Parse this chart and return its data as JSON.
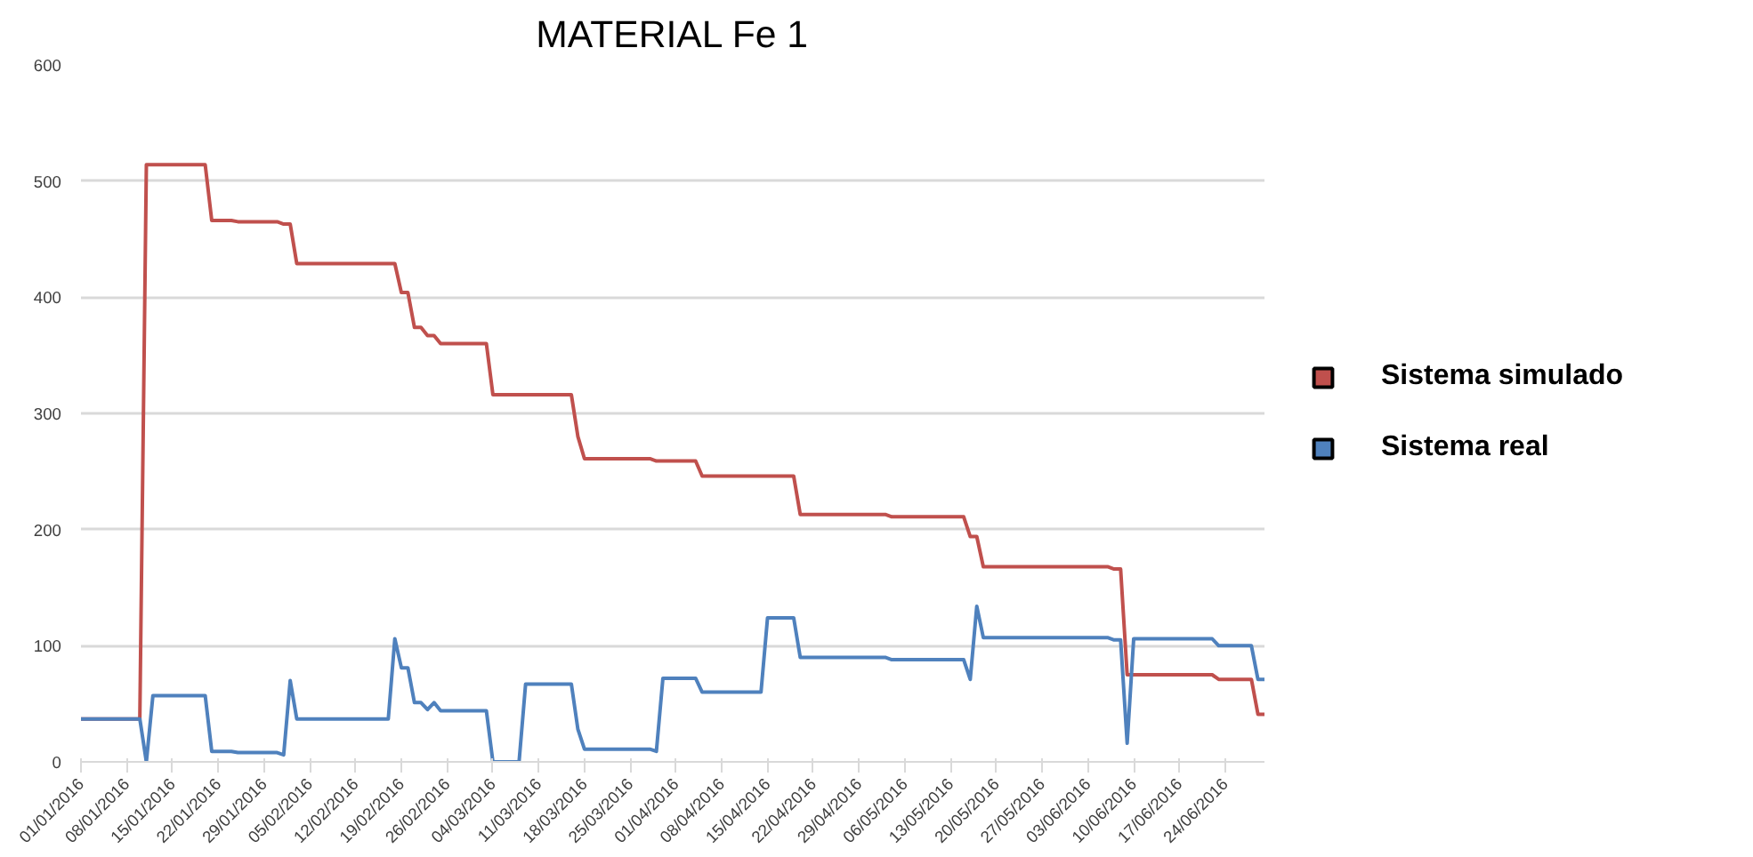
{
  "chart_data": {
    "type": "line",
    "title": "MATERIAL Fe 1",
    "xlim": [
      "2016-01-01",
      "2016-06-30"
    ],
    "xticks": [
      {
        "value": "2016-01-01",
        "label": "01/01/2016"
      },
      {
        "value": "2016-01-08",
        "label": "08/01/2016"
      },
      {
        "value": "2016-01-15",
        "label": "15/01/2016"
      },
      {
        "value": "2016-01-22",
        "label": "22/01/2016"
      },
      {
        "value": "2016-01-29",
        "label": "29/01/2016"
      },
      {
        "value": "2016-02-05",
        "label": "05/02/2016"
      },
      {
        "value": "2016-02-12",
        "label": "12/02/2016"
      },
      {
        "value": "2016-02-19",
        "label": "19/02/2016"
      },
      {
        "value": "2016-02-26",
        "label": "26/02/2016"
      },
      {
        "value": "2016-03-04",
        "label": "04/03/2016"
      },
      {
        "value": "2016-03-11",
        "label": "11/03/2016"
      },
      {
        "value": "2016-03-18",
        "label": "18/03/2016"
      },
      {
        "value": "2016-03-25",
        "label": "25/03/2016"
      },
      {
        "value": "2016-04-01",
        "label": "01/04/2016"
      },
      {
        "value": "2016-04-08",
        "label": "08/04/2016"
      },
      {
        "value": "2016-04-15",
        "label": "15/04/2016"
      },
      {
        "value": "2016-04-22",
        "label": "22/04/2016"
      },
      {
        "value": "2016-04-29",
        "label": "29/04/2016"
      },
      {
        "value": "2016-05-06",
        "label": "06/05/2016"
      },
      {
        "value": "2016-05-13",
        "label": "13/05/2016"
      },
      {
        "value": "2016-05-20",
        "label": "20/05/2016"
      },
      {
        "value": "2016-05-27",
        "label": "27/05/2016"
      },
      {
        "value": "2016-06-03",
        "label": "03/06/2016"
      },
      {
        "value": "2016-06-10",
        "label": "10/06/2016"
      },
      {
        "value": "2016-06-17",
        "label": "17/06/2016"
      },
      {
        "value": "2016-06-24",
        "label": "24/06/2016"
      }
    ],
    "ylim": [
      0,
      600
    ],
    "yticks": [
      0,
      100,
      200,
      300,
      400,
      500,
      600
    ],
    "grid": "y",
    "legend": "right",
    "series": [
      {
        "name": "Sistema simulado",
        "color": "#c0504d",
        "x": [
          "2016-01-01",
          "2016-01-10",
          "2016-01-11",
          "2016-01-20",
          "2016-01-21",
          "2016-01-24",
          "2016-01-25",
          "2016-01-31",
          "2016-02-01",
          "2016-02-02",
          "2016-02-03",
          "2016-02-18",
          "2016-02-19",
          "2016-02-20",
          "2016-02-21",
          "2016-02-22",
          "2016-02-23",
          "2016-02-24",
          "2016-02-25",
          "2016-03-03",
          "2016-03-04",
          "2016-03-16",
          "2016-03-17",
          "2016-03-18",
          "2016-03-28",
          "2016-03-29",
          "2016-04-04",
          "2016-04-05",
          "2016-04-19",
          "2016-04-20",
          "2016-05-03",
          "2016-05-04",
          "2016-05-15",
          "2016-05-16",
          "2016-05-17",
          "2016-05-18",
          "2016-06-06",
          "2016-06-07",
          "2016-06-08",
          "2016-06-09",
          "2016-06-22",
          "2016-06-23",
          "2016-06-28",
          "2016-06-29",
          "2016-06-30"
        ],
        "values": [
          37,
          37,
          514,
          514,
          466,
          466,
          465,
          465,
          463,
          463,
          429,
          429,
          404,
          404,
          374,
          374,
          367,
          367,
          360,
          360,
          316,
          316,
          280,
          261,
          261,
          259,
          259,
          246,
          246,
          213,
          213,
          211,
          211,
          194,
          194,
          168,
          168,
          166,
          166,
          75,
          75,
          71,
          71,
          41,
          41
        ]
      },
      {
        "name": "Sistema real",
        "color": "#4f81bd",
        "x": [
          "2016-01-01",
          "2016-01-10",
          "2016-01-11",
          "2016-01-12",
          "2016-01-20",
          "2016-01-21",
          "2016-01-24",
          "2016-01-25",
          "2016-01-31",
          "2016-02-01",
          "2016-02-02",
          "2016-02-03",
          "2016-02-17",
          "2016-02-18",
          "2016-02-19",
          "2016-02-20",
          "2016-02-21",
          "2016-02-22",
          "2016-02-23",
          "2016-02-24",
          "2016-02-25",
          "2016-03-03",
          "2016-03-04",
          "2016-03-08",
          "2016-03-09",
          "2016-03-16",
          "2016-03-17",
          "2016-03-18",
          "2016-03-28",
          "2016-03-29",
          "2016-03-30",
          "2016-04-04",
          "2016-04-05",
          "2016-04-14",
          "2016-04-15",
          "2016-04-19",
          "2016-04-20",
          "2016-05-03",
          "2016-05-04",
          "2016-05-15",
          "2016-05-16",
          "2016-05-17",
          "2016-05-18",
          "2016-06-06",
          "2016-06-07",
          "2016-06-08",
          "2016-06-09",
          "2016-06-10",
          "2016-06-22",
          "2016-06-23",
          "2016-06-28",
          "2016-06-29",
          "2016-06-30"
        ],
        "values": [
          37,
          37,
          0,
          57,
          57,
          9,
          9,
          8,
          8,
          6,
          70,
          37,
          37,
          106,
          81,
          81,
          51,
          51,
          45,
          51,
          44,
          44,
          0,
          0,
          67,
          67,
          28,
          11,
          11,
          9,
          72,
          72,
          60,
          60,
          124,
          124,
          90,
          90,
          88,
          88,
          71,
          134,
          107,
          107,
          105,
          105,
          16,
          106,
          106,
          100,
          100,
          71,
          71
        ]
      }
    ]
  }
}
